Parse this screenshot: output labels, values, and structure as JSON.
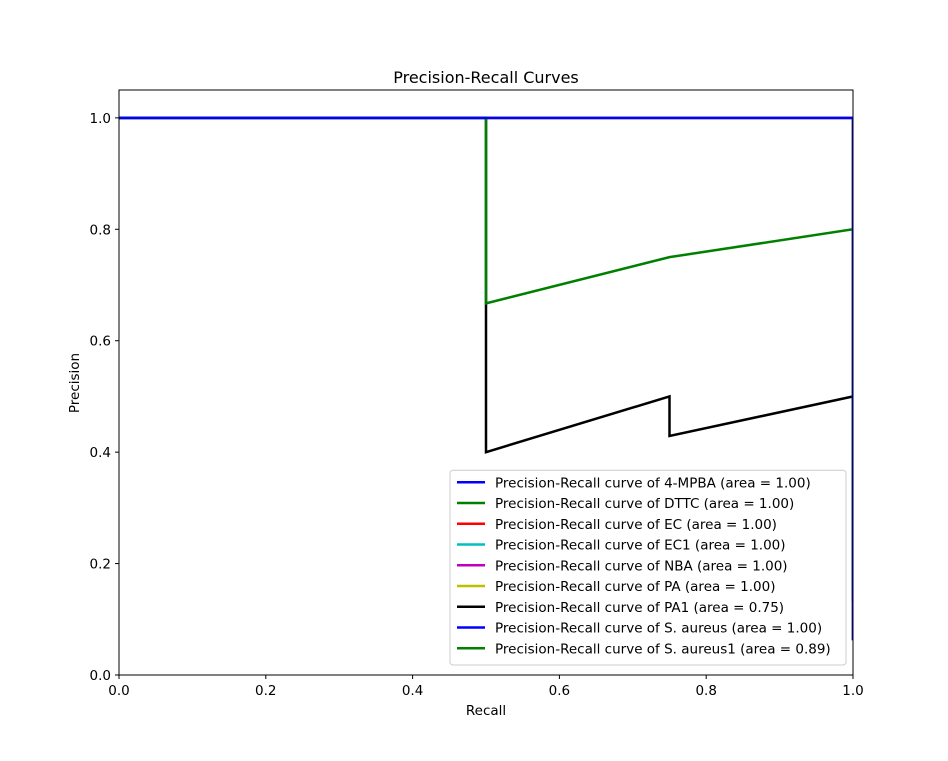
{
  "chart_data": {
    "type": "line",
    "title": "Precision-Recall Curves",
    "xlabel": "Recall",
    "ylabel": "Precision",
    "xlim": [
      0.0,
      1.0
    ],
    "ylim": [
      0.0,
      1.05
    ],
    "xticks": [
      0.0,
      0.2,
      0.4,
      0.6,
      0.8,
      1.0
    ],
    "yticks": [
      0.0,
      0.2,
      0.4,
      0.6,
      0.8,
      1.0
    ],
    "xtick_labels": [
      "0.0",
      "0.2",
      "0.4",
      "0.6",
      "0.8",
      "1.0"
    ],
    "ytick_labels": [
      "0.0",
      "0.2",
      "0.4",
      "0.6",
      "0.8",
      "1.0"
    ],
    "grid": false,
    "legend_position": "lower-right",
    "series": [
      {
        "name": "Precision-Recall curve of 4-MPBA (area = 1.00)",
        "color": "#0000ff",
        "x": [
          0,
          1,
          1
        ],
        "y": [
          1,
          1,
          0.0625
        ]
      },
      {
        "name": "Precision-Recall curve of DTTC (area = 1.00)",
        "color": "#008000",
        "x": [
          0,
          1,
          1
        ],
        "y": [
          1,
          1,
          0.0625
        ]
      },
      {
        "name": "Precision-Recall curve of EC (area = 1.00)",
        "color": "#ff0000",
        "x": [
          0,
          1,
          1
        ],
        "y": [
          1,
          1,
          0.0625
        ]
      },
      {
        "name": "Precision-Recall curve of EC1 (area = 1.00)",
        "color": "#00bfbf",
        "x": [
          0,
          1,
          1
        ],
        "y": [
          1,
          1,
          0.0625
        ]
      },
      {
        "name": "Precision-Recall curve of NBA (area = 1.00)",
        "color": "#bf00bf",
        "x": [
          0,
          1,
          1
        ],
        "y": [
          1,
          1,
          0.0625
        ]
      },
      {
        "name": "Precision-Recall curve of PA (area = 1.00)",
        "color": "#bfbf00",
        "x": [
          0,
          1,
          1
        ],
        "y": [
          1,
          1,
          0.0625
        ]
      },
      {
        "name": "Precision-Recall curve of PA1 (area = 0.75)",
        "color": "#000000",
        "x": [
          0,
          0.5,
          0.5,
          0.5,
          0.75,
          0.75,
          1.0,
          1.0
        ],
        "y": [
          1,
          1,
          0.667,
          0.4,
          0.5,
          0.429,
          0.5,
          0.133
        ]
      },
      {
        "name": "Precision-Recall curve of S. aureus (area = 1.00)",
        "color": "#0000ff",
        "x": [
          0,
          1,
          1
        ],
        "y": [
          1,
          1,
          0.0625
        ]
      },
      {
        "name": "Precision-Recall curve of S. aureus1 (area = 0.89)",
        "color": "#008000",
        "x": [
          0,
          0.5,
          0.5,
          0.75,
          1.0,
          1.0
        ],
        "y": [
          1,
          1,
          0.667,
          0.75,
          0.8,
          0.133
        ]
      }
    ],
    "draw_order": [
      0,
      1,
      2,
      3,
      4,
      5,
      6,
      8,
      7
    ]
  }
}
